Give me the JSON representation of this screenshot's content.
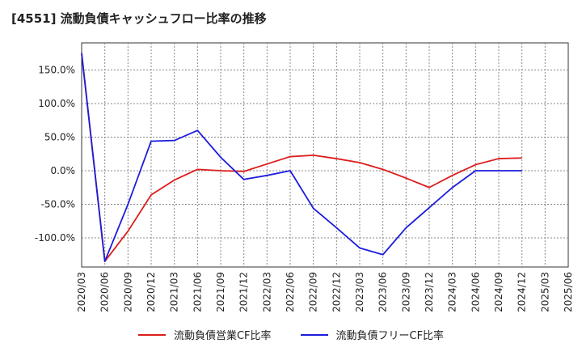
{
  "title": "[4551]  流動負債キャッシュフロー比率の推移",
  "chart_data": {
    "type": "line",
    "title": "[4551]  流動負債キャッシュフロー比率の推移",
    "xlabel": "",
    "ylabel": "",
    "ylim": [
      -145,
      180
    ],
    "yticks": [
      -100,
      -50,
      0,
      50,
      100,
      150
    ],
    "ytick_labels": [
      "-100.0%",
      "-50.0%",
      "0.0%",
      "50.0%",
      "100.0%",
      "150.0%"
    ],
    "categories": [
      "2020/03",
      "2020/06",
      "2020/09",
      "2020/12",
      "2021/03",
      "2021/06",
      "2021/09",
      "2021/12",
      "2022/03",
      "2022/06",
      "2022/09",
      "2022/12",
      "2023/03",
      "2023/06",
      "2023/09",
      "2023/12",
      "2024/03",
      "2024/06",
      "2024/09",
      "2024/12",
      "2025/03",
      "2025/06"
    ],
    "grid": true,
    "legend_position": "bottom",
    "series": [
      {
        "name": "流動負債営業CF比率",
        "color": "#dd1c1c",
        "values": [
          175,
          -135,
          -90,
          -36,
          -14,
          2,
          0,
          -1,
          10,
          21,
          23,
          18,
          12,
          2,
          -11,
          -25,
          -7,
          9,
          18,
          19,
          null,
          null
        ]
      },
      {
        "name": "流動負債フリーCF比率",
        "color": "#1c1cdd",
        "values": [
          175,
          -135,
          -50,
          44,
          45,
          60,
          20,
          -13,
          -7,
          0,
          -56,
          -85,
          -115,
          -125,
          -85,
          -55,
          -25,
          0,
          0,
          0,
          null,
          null
        ]
      }
    ]
  }
}
